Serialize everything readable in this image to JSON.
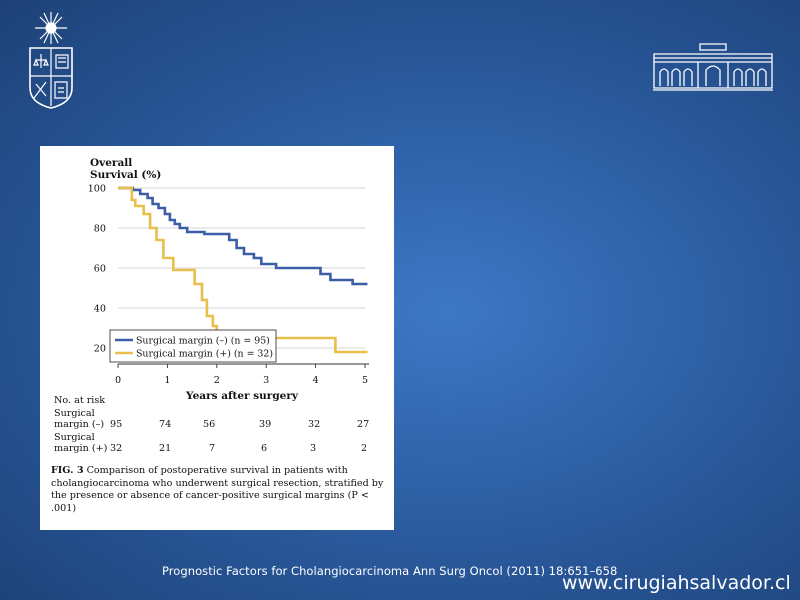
{
  "chart_data": {
    "type": "line",
    "subtype": "kaplan-meier step",
    "title": "",
    "ylabel_line1": "Overall",
    "ylabel_line2": "Survival (%)",
    "xlabel": "Years after surgery",
    "xlim": [
      0,
      5
    ],
    "ylim": [
      12,
      102
    ],
    "x_ticks": [
      "0",
      "1",
      "2",
      "3",
      "4",
      "5"
    ],
    "y_ticks": [
      "100",
      "80",
      "60",
      "40",
      "20"
    ],
    "grid": true,
    "legend_position": "bottom-left",
    "series": [
      {
        "name": "Surgical margin (–) (n = 95)",
        "color": "#3c5ea8",
        "points": [
          [
            0,
            100
          ],
          [
            0.3,
            100
          ],
          [
            0.3,
            99
          ],
          [
            0.45,
            99
          ],
          [
            0.45,
            97
          ],
          [
            0.6,
            97
          ],
          [
            0.6,
            95
          ],
          [
            0.7,
            95
          ],
          [
            0.7,
            92
          ],
          [
            0.82,
            92
          ],
          [
            0.82,
            90
          ],
          [
            0.95,
            90
          ],
          [
            0.95,
            87
          ],
          [
            1.05,
            87
          ],
          [
            1.05,
            84
          ],
          [
            1.15,
            84
          ],
          [
            1.15,
            82
          ],
          [
            1.25,
            82
          ],
          [
            1.25,
            80
          ],
          [
            1.4,
            80
          ],
          [
            1.4,
            78
          ],
          [
            1.75,
            78
          ],
          [
            1.75,
            77
          ],
          [
            2.25,
            77
          ],
          [
            2.25,
            74
          ],
          [
            2.4,
            74
          ],
          [
            2.4,
            70
          ],
          [
            2.55,
            70
          ],
          [
            2.55,
            67
          ],
          [
            2.75,
            67
          ],
          [
            2.75,
            65
          ],
          [
            2.9,
            65
          ],
          [
            2.9,
            62
          ],
          [
            3.2,
            62
          ],
          [
            3.2,
            60
          ],
          [
            4.1,
            60
          ],
          [
            4.1,
            57
          ],
          [
            4.3,
            57
          ],
          [
            4.3,
            54
          ],
          [
            4.75,
            54
          ],
          [
            4.75,
            52
          ],
          [
            5.05,
            52
          ]
        ]
      },
      {
        "name": "Surgical margin (+) (n = 32)",
        "color": "#e8bf4a",
        "points": [
          [
            0,
            100
          ],
          [
            0.28,
            100
          ],
          [
            0.28,
            94
          ],
          [
            0.35,
            94
          ],
          [
            0.35,
            91
          ],
          [
            0.52,
            91
          ],
          [
            0.52,
            87
          ],
          [
            0.65,
            87
          ],
          [
            0.65,
            80
          ],
          [
            0.78,
            80
          ],
          [
            0.78,
            74
          ],
          [
            0.92,
            74
          ],
          [
            0.92,
            65
          ],
          [
            1.12,
            65
          ],
          [
            1.12,
            59
          ],
          [
            1.55,
            59
          ],
          [
            1.55,
            52
          ],
          [
            1.7,
            52
          ],
          [
            1.7,
            44
          ],
          [
            1.8,
            44
          ],
          [
            1.8,
            36
          ],
          [
            1.92,
            36
          ],
          [
            1.92,
            31
          ],
          [
            2.0,
            31
          ],
          [
            2.0,
            27
          ],
          [
            3.1,
            27
          ],
          [
            3.1,
            25
          ],
          [
            4.4,
            25
          ],
          [
            4.4,
            18
          ],
          [
            5.05,
            18
          ]
        ]
      }
    ]
  },
  "risk_table": {
    "header": "No. at risk",
    "row1_label_line1": "Surgical",
    "row1_label_line2": "margin (–)",
    "row1_values": [
      "95",
      "74",
      "56",
      "39",
      "32",
      "27"
    ],
    "row2_label_line1": "Surgical",
    "row2_label_line2": "margin (+)",
    "row2_values": [
      "32",
      "21",
      "7",
      "6",
      "3",
      "2"
    ]
  },
  "caption": {
    "fig_label": "FIG. 3",
    "text": " Comparison of postoperative survival in patients with cholangiocarcinoma who underwent surgical resection, stratified by the presence or absence of cancer-positive surgical margins (P < .001)"
  },
  "footer": {
    "citation": "Prognostic Factors for Cholangiocarcinoma Ann Surg Oncol (2011) 18:651–658",
    "website": "www.cirugiahsalvador.cl"
  }
}
